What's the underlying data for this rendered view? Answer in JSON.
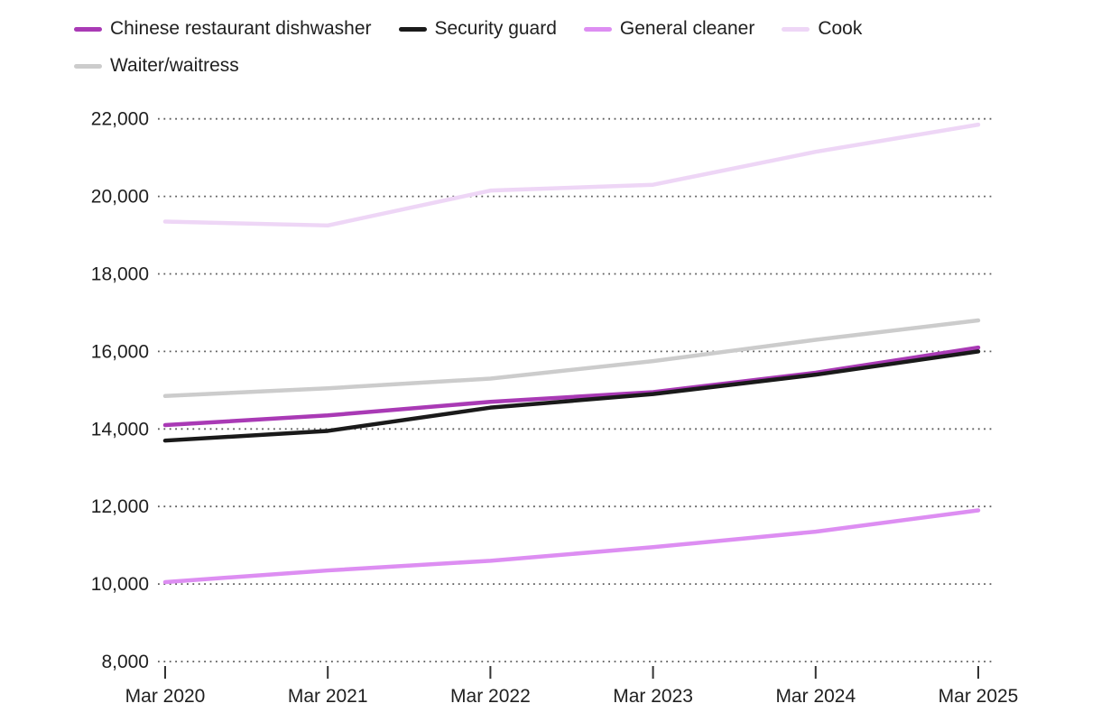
{
  "chart_data": {
    "type": "line",
    "x": [
      "Mar 2020",
      "Mar 2021",
      "Mar 2022",
      "Mar 2023",
      "Mar 2024",
      "Mar 2025"
    ],
    "series": [
      {
        "name": "Chinese restaurant dishwasher",
        "color": "#a93ab5",
        "values": [
          14100,
          14350,
          14700,
          14950,
          15450,
          16100
        ]
      },
      {
        "name": "Security guard",
        "color": "#1a1a1a",
        "values": [
          13700,
          13950,
          14550,
          14900,
          15400,
          16000
        ]
      },
      {
        "name": "General cleaner",
        "color": "#dd8ef2",
        "values": [
          10050,
          10350,
          10600,
          10950,
          11350,
          11900
        ]
      },
      {
        "name": "Cook",
        "color": "#eed6f6",
        "values": [
          19350,
          19250,
          20150,
          20300,
          21150,
          21850
        ]
      },
      {
        "name": "Waiter/waitress",
        "color": "#cccccc",
        "values": [
          14850,
          15050,
          15300,
          15750,
          16300,
          16800
        ]
      }
    ],
    "ylim": [
      8000,
      22000
    ],
    "ytick_step": 2000,
    "yticks": [
      8000,
      10000,
      12000,
      14000,
      16000,
      18000,
      20000,
      22000
    ],
    "ytick_labels": [
      "8,000",
      "10,000",
      "12,000",
      "14,000",
      "16,000",
      "18,000",
      "20,000",
      "22,000"
    ],
    "xlabel": "",
    "ylabel": "",
    "title": "",
    "grid": "dotted-horizontal",
    "legend_position": "top-left"
  }
}
